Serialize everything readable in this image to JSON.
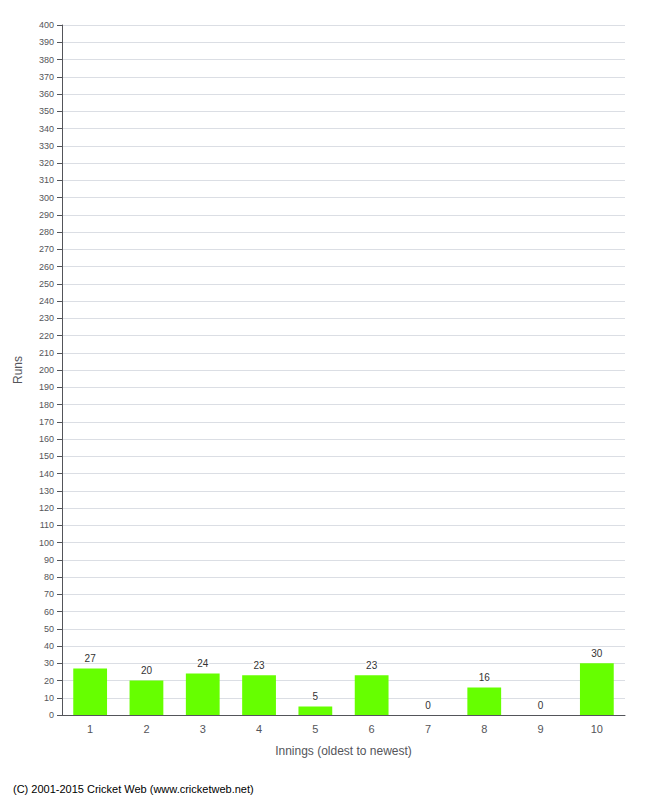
{
  "chart_data": {
    "type": "bar",
    "xlabel": "Innings (oldest to newest)",
    "ylabel": "Runs",
    "categories": [
      "1",
      "2",
      "3",
      "4",
      "5",
      "6",
      "7",
      "8",
      "9",
      "10"
    ],
    "values": [
      27,
      20,
      24,
      23,
      5,
      23,
      0,
      16,
      0,
      30
    ],
    "color": "#66ff00",
    "ylim": [
      0,
      400
    ],
    "yticks": [
      0,
      10,
      20,
      30,
      40,
      50,
      60,
      70,
      80,
      90,
      100,
      110,
      120,
      130,
      140,
      150,
      160,
      170,
      180,
      190,
      200,
      210,
      220,
      230,
      240,
      250,
      260,
      270,
      280,
      290,
      300,
      310,
      320,
      330,
      340,
      350,
      360,
      370,
      380,
      390,
      400
    ],
    "grid": true,
    "data_labels": true,
    "annotations": [
      "(C) 2001-2015 Cricket Web (www.cricketweb.net)"
    ]
  }
}
